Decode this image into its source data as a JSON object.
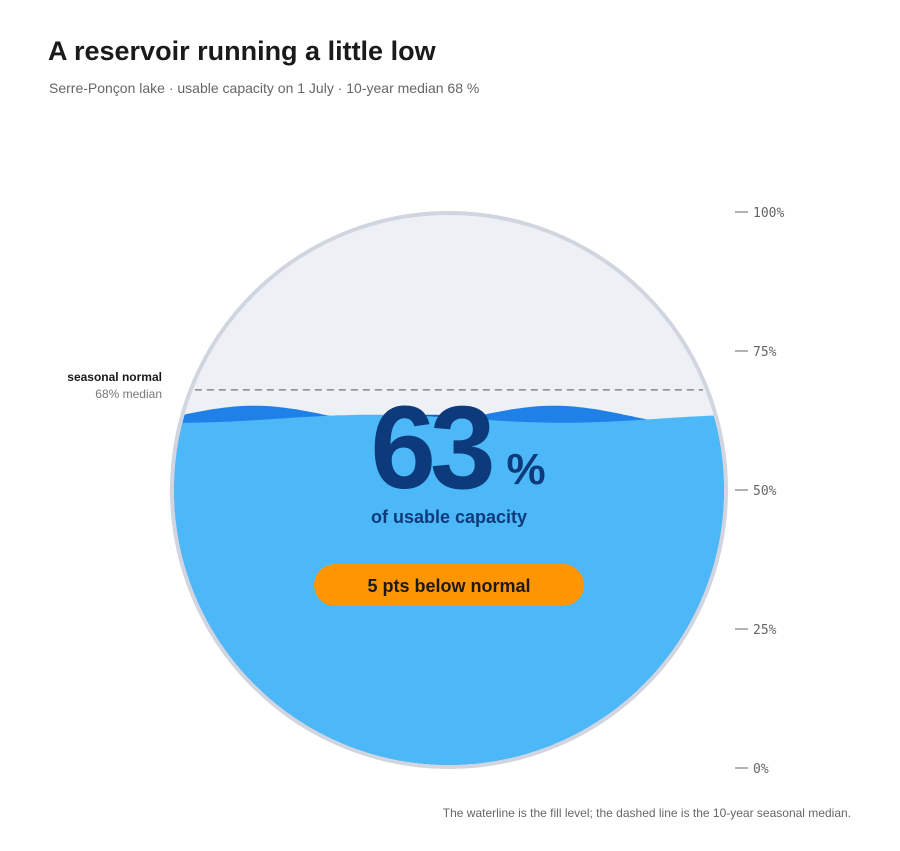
{
  "title": "A reservoir running a little low",
  "subtitle": "Serre-Ponçon lake · usable capacity on 1 July · 10-year median 68 %",
  "normal_label": {
    "title": "seasonal normal",
    "sub": "68% median"
  },
  "caption": "The waterline is the fill level; the dashed line is the 10-year seasonal median.",
  "chart_data": {
    "type": "gauge",
    "value": 63,
    "value_unit": "%",
    "value_label": "of usable capacity",
    "median": 68,
    "delta_label": "5 pts below normal",
    "ylim": [
      0,
      100
    ],
    "ticks": [
      0,
      25,
      50,
      75,
      100
    ],
    "tick_labels": [
      "0%",
      "25%",
      "50%",
      "75%",
      "100%"
    ],
    "colors": {
      "water": "#4db8f8",
      "wave_back": "#1f80e8",
      "wave_front": "#0a66d8",
      "empty": "#edf0f5",
      "rim": "#d0d5e0",
      "value_text": "#0d3a7a",
      "badge": "#ff9500"
    }
  }
}
